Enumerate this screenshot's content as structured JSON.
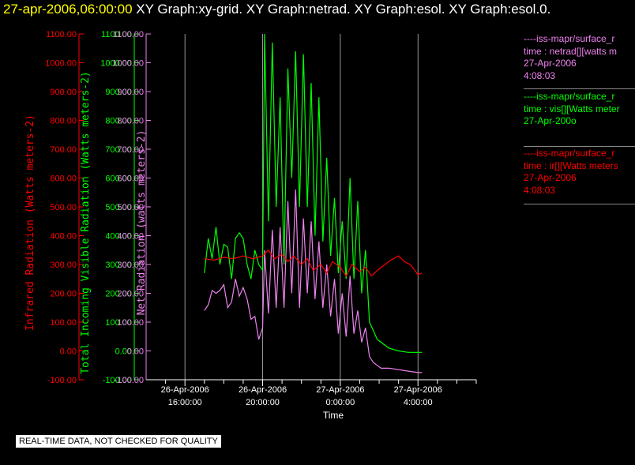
{
  "header": {
    "time": "27-apr-2006,06:00:00",
    "graphs": "XY Graph:xy-grid.  XY Graph:netrad.  XY Graph:esol.  XY Graph:esol.0."
  },
  "legend": [
    {
      "lines": [
        "----iss-mapr/surface_r",
        "time : netrad[][watts m",
        "27-Apr-2006",
        "4:08:03"
      ],
      "color": "#ee82ee"
    },
    {
      "lines": [
        "----iss-mapr/surface_r",
        "time : vis[][Watts meter",
        "27-Apr-200o"
      ],
      "color": "#00ff00"
    },
    {
      "lines": [
        "----iss-mapr/surface_r",
        "time : ir[][Watts meters",
        "27-Apr-2006",
        "4:08:03"
      ],
      "color": "#ff0000"
    }
  ],
  "footer": "REAL-TIME DATA, NOT CHECKED FOR QUALITY",
  "chart_data": {
    "type": "line",
    "xlabel": "Time",
    "x_ticks": [
      {
        "hours": 16,
        "line1": "26-Apr-2006",
        "line2": "16:00:00"
      },
      {
        "hours": 20,
        "line1": "26-Apr-2006",
        "line2": "20:00:00"
      },
      {
        "hours": 24,
        "line1": "27-Apr-2006",
        "line2": "0:00:00"
      },
      {
        "hours": 28,
        "line1": "27-Apr-2006",
        "line2": "4:00:00"
      }
    ],
    "xlim_hours": [
      14,
      31
    ],
    "y_ticks": [
      "1100.00",
      "1000.00",
      "900.00",
      "800.00",
      "700.00",
      "600.00",
      "500.00",
      "400.00",
      "300.00",
      "200.00",
      "100.00",
      "0.00",
      "-100.00"
    ],
    "ylim": [
      -100,
      1100
    ],
    "axes": [
      {
        "label": "Infrared Radiation (Watts meters-2)",
        "color": "#ff0000"
      },
      {
        "label": "Total Incoming Visible Radiation (Watts meters-2)",
        "color": "#00ff00"
      },
      {
        "label": "Net Radiation (watts meters-2)",
        "color": "#ee82ee"
      }
    ],
    "series": [
      {
        "color": "#00ff00",
        "x": [
          17.0,
          17.2,
          17.4,
          17.6,
          17.8,
          18.0,
          18.2,
          18.4,
          18.6,
          18.8,
          19.0,
          19.2,
          19.4,
          19.6,
          19.8,
          20.0,
          20.1,
          20.3,
          20.5,
          20.7,
          20.9,
          21.1,
          21.3,
          21.5,
          21.7,
          21.9,
          22.1,
          22.3,
          22.5,
          22.7,
          22.9,
          23.1,
          23.3,
          23.5,
          23.7,
          23.9,
          24.1,
          24.3,
          24.5,
          24.7,
          24.9,
          25.1,
          25.3,
          25.5,
          25.7,
          25.9,
          26.1,
          26.5,
          27.0,
          27.5,
          28.0,
          28.2
        ],
        "y": [
          270,
          390,
          320,
          430,
          300,
          370,
          360,
          250,
          390,
          410,
          390,
          300,
          250,
          350,
          300,
          280,
          1100,
          450,
          1070,
          500,
          880,
          300,
          980,
          600,
          1040,
          500,
          1030,
          500,
          930,
          400,
          880,
          380,
          670,
          330,
          530,
          270,
          450,
          250,
          600,
          250,
          520,
          200,
          350,
          100,
          70,
          40,
          30,
          10,
          0,
          -5,
          -5,
          -5
        ]
      },
      {
        "color": "#ee82ee",
        "x": [
          17.0,
          17.2,
          17.4,
          17.6,
          17.8,
          18.0,
          18.2,
          18.4,
          18.6,
          18.8,
          19.0,
          19.2,
          19.4,
          19.6,
          19.8,
          20.0,
          20.1,
          20.3,
          20.5,
          20.7,
          20.9,
          21.1,
          21.3,
          21.5,
          21.7,
          21.9,
          22.1,
          22.3,
          22.5,
          22.7,
          22.9,
          23.1,
          23.3,
          23.5,
          23.7,
          23.9,
          24.1,
          24.3,
          24.5,
          24.7,
          24.9,
          25.1,
          25.3,
          25.5,
          25.7,
          25.9,
          26.1,
          26.5,
          27.0,
          27.5,
          28.0,
          28.2
        ],
        "y": [
          140,
          160,
          210,
          200,
          210,
          230,
          150,
          170,
          250,
          190,
          220,
          180,
          110,
          120,
          40,
          80,
          350,
          130,
          420,
          150,
          430,
          150,
          520,
          200,
          560,
          150,
          460,
          200,
          450,
          180,
          380,
          150,
          300,
          120,
          250,
          60,
          200,
          50,
          260,
          60,
          140,
          30,
          80,
          -20,
          -40,
          -50,
          -60,
          -60,
          -65,
          -70,
          -75,
          -75
        ]
      },
      {
        "color": "#ff0000",
        "x": [
          17.0,
          17.5,
          18.0,
          18.5,
          19.0,
          19.5,
          20.0,
          20.3,
          20.6,
          21.0,
          21.3,
          21.6,
          22.0,
          22.3,
          22.6,
          23.0,
          23.3,
          23.6,
          24.0,
          24.3,
          24.6,
          25.0,
          25.3,
          25.6,
          26.0,
          26.3,
          26.6,
          27.0,
          27.3,
          27.6,
          28.0,
          28.2
        ],
        "y": [
          320,
          315,
          325,
          320,
          330,
          320,
          330,
          350,
          320,
          335,
          310,
          330,
          300,
          320,
          280,
          300,
          270,
          310,
          290,
          260,
          300,
          275,
          290,
          260,
          285,
          300,
          315,
          330,
          310,
          300,
          265,
          270
        ]
      }
    ]
  }
}
